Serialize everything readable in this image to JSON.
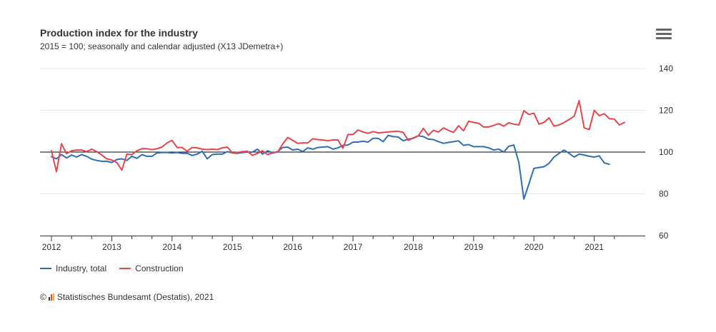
{
  "chart_data": {
    "type": "line",
    "title": "Production index for the industry",
    "subtitle": "2015 = 100; seasonally and calendar adjusted (X13 JDemetra+)",
    "xlabel": "",
    "ylabel": "",
    "x_start": "2012-01",
    "x_ticks": [
      "2012",
      "2013",
      "2014",
      "2015",
      "2016",
      "2017",
      "2018",
      "2019",
      "2020",
      "2021"
    ],
    "ylim": [
      60,
      140
    ],
    "y_ticks": [
      60,
      80,
      100,
      120,
      140
    ],
    "reference_line": 100,
    "legend_position": "bottom-left",
    "grid": true,
    "series": [
      {
        "name": "Industry, total",
        "color": "#2f6eb5",
        "values": [
          97.8,
          96.8,
          98.8,
          97.2,
          98.6,
          97.6,
          98.8,
          98.0,
          96.6,
          96.0,
          95.6,
          95.6,
          95.0,
          96.4,
          96.8,
          96.0,
          98.0,
          97.0,
          98.8,
          98.0,
          98.0,
          99.6,
          99.8,
          99.8,
          99.6,
          99.8,
          99.4,
          99.4,
          98.4,
          99.0,
          100.4,
          96.8,
          98.8,
          99.0,
          99.0,
          100.2,
          99.6,
          99.4,
          99.8,
          100.0,
          100.0,
          101.4,
          99.0,
          100.6,
          99.6,
          100.2,
          102.2,
          102.4,
          101.0,
          101.4,
          100.2,
          102.0,
          101.4,
          102.2,
          102.4,
          102.6,
          101.4,
          102.0,
          103.2,
          103.4,
          104.8,
          104.8,
          105.2,
          104.8,
          106.6,
          106.6,
          105.0,
          108.0,
          107.4,
          107.2,
          105.4,
          106.2,
          106.6,
          107.8,
          107.4,
          106.2,
          106.0,
          105.0,
          104.2,
          104.6,
          105.0,
          105.4,
          103.2,
          103.6,
          102.6,
          102.6,
          102.6,
          102.0,
          101.0,
          101.4,
          100.0,
          102.8,
          103.4,
          95.0,
          77.5,
          84.8,
          92.2,
          92.6,
          93.0,
          94.6,
          97.6,
          99.4,
          101.0,
          99.4,
          97.6,
          99.0,
          98.6,
          98.0,
          97.6,
          98.2,
          94.8,
          94.2
        ]
      },
      {
        "name": "Construction",
        "color": "#e8444c",
        "values": [
          100.6,
          90.6,
          104.0,
          99.2,
          100.6,
          101.0,
          101.0,
          100.2,
          101.4,
          100.2,
          98.6,
          96.8,
          96.2,
          95.0,
          91.4,
          99.0,
          98.8,
          100.6,
          101.6,
          101.6,
          101.2,
          101.6,
          102.4,
          104.4,
          105.6,
          102.2,
          102.2,
          100.4,
          102.2,
          102.0,
          101.4,
          101.2,
          101.4,
          101.2,
          102.0,
          102.4,
          99.6,
          99.8,
          100.2,
          100.4,
          98.4,
          99.4,
          100.6,
          98.8,
          99.6,
          100.0,
          103.8,
          107.0,
          105.6,
          104.2,
          104.4,
          104.4,
          106.4,
          106.0,
          105.8,
          105.4,
          105.8,
          105.8,
          101.8,
          108.4,
          108.4,
          110.6,
          109.6,
          109.0,
          109.8,
          109.2,
          109.4,
          109.6,
          109.8,
          110.0,
          109.4,
          105.6,
          106.8,
          107.8,
          111.4,
          108.0,
          110.4,
          109.6,
          111.6,
          110.4,
          109.4,
          112.6,
          110.2,
          114.8,
          114.2,
          113.8,
          112.0,
          112.0,
          112.8,
          113.6,
          112.4,
          114.0,
          113.4,
          113.0,
          119.8,
          118.0,
          118.6,
          113.4,
          114.2,
          116.4,
          112.4,
          113.0,
          114.2,
          115.6,
          117.2,
          124.6,
          111.6,
          110.8,
          120.0,
          117.4,
          118.4,
          116.0,
          115.8,
          113.0,
          114.2
        ]
      }
    ]
  },
  "header": {
    "menu_icon": "hamburger-menu-icon"
  },
  "credits": {
    "copyright": "©",
    "logo_icon": "destatis-logo-icon",
    "text": "Statistisches Bundesamt (Destatis), 2021"
  }
}
